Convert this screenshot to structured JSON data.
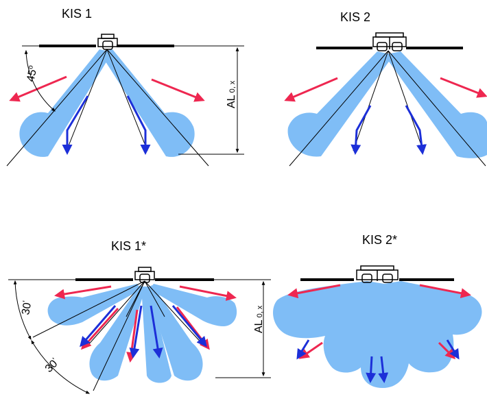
{
  "colors": {
    "jet": "#7fbdf6",
    "warm_arrow": "#ee2750",
    "cool_arrow": "#1c2fd8",
    "line": "#000000"
  },
  "panels": [
    {
      "title": "KIS 1",
      "angle_label": "45",
      "angle_unit": "o",
      "height_label": "AL",
      "height_sub": "0, x"
    },
    {
      "title": "KIS 2"
    },
    {
      "title": "KIS 1*",
      "angle_label_1": "30",
      "angle_label_2": "30",
      "angle_unit": "'",
      "height_label": "AL",
      "height_sub": "0, x"
    },
    {
      "title": "KIS 2*"
    }
  ]
}
